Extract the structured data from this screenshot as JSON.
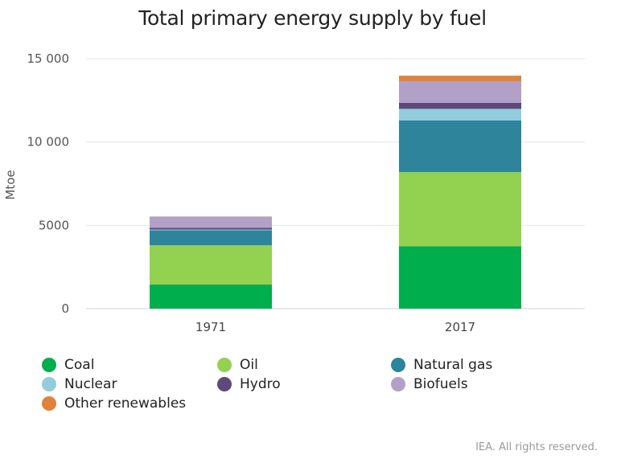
{
  "chart_data": {
    "type": "bar",
    "stacked": true,
    "title": "Total primary energy supply by fuel",
    "xlabel": "",
    "ylabel": "Mtoe",
    "ylim": [
      0,
      15000
    ],
    "yticks": [
      0,
      5000,
      10000,
      15000
    ],
    "ytick_labels": [
      "0",
      "5000",
      "10 000",
      "15 000"
    ],
    "categories": [
      "1971",
      "2017"
    ],
    "grid": true,
    "legend_position": "bottom",
    "series": [
      {
        "name": "Coal",
        "color": "#00ae4d",
        "values": [
          1450,
          3750
        ]
      },
      {
        "name": "Oil",
        "color": "#93d150",
        "values": [
          2350,
          4450
        ]
      },
      {
        "name": "Natural gas",
        "color": "#2e859b",
        "values": [
          900,
          3100
        ]
      },
      {
        "name": "Nuclear",
        "color": "#92cddd",
        "values": [
          50,
          690
        ]
      },
      {
        "name": "Hydro",
        "color": "#5f497a",
        "values": [
          110,
          360
        ]
      },
      {
        "name": "Biofuels",
        "color": "#b1a0c7",
        "values": [
          660,
          1300
        ]
      },
      {
        "name": "Other renewables",
        "color": "#e0823a",
        "values": [
          10,
          330
        ]
      }
    ]
  },
  "footer": {
    "credit": "IEA. All rights reserved."
  }
}
